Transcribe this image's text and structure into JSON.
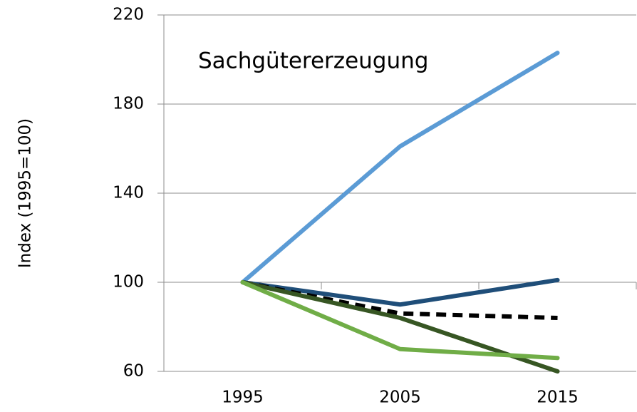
{
  "chart_data": {
    "type": "line",
    "annotation": "Sachgütererzeugung",
    "y_label": "Index (1995=100)",
    "categories": [
      "1995",
      "2005",
      "2015"
    ],
    "series": [
      {
        "color": "#5b9bd5",
        "values": [
          100,
          161,
          203
        ]
      },
      {
        "color": "#1f4e79",
        "values": [
          100,
          90,
          101
        ]
      },
      {
        "color": "#000000",
        "dashed": true,
        "values": [
          100,
          86,
          84
        ]
      },
      {
        "color": "#375623",
        "values": [
          100,
          84,
          60
        ]
      },
      {
        "color": "#70ad47",
        "values": [
          100,
          70,
          66
        ]
      }
    ],
    "ylim": [
      60,
      220
    ],
    "yticks": [
      60,
      100,
      140,
      180,
      220
    ],
    "grid": true
  }
}
